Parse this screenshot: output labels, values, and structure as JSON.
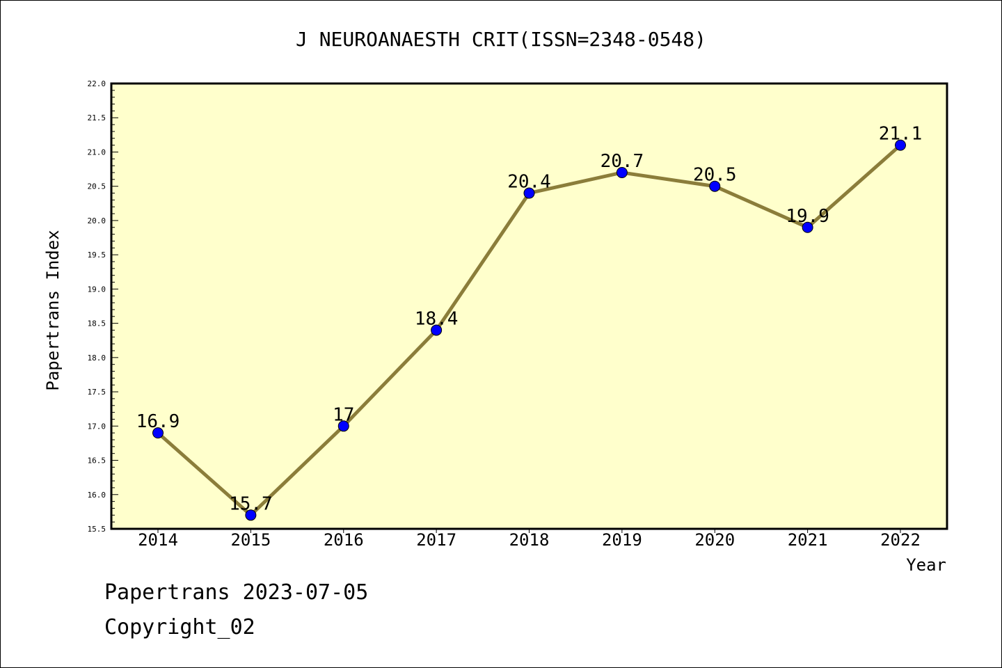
{
  "chart_data": {
    "type": "line",
    "title": "J NEUROANAESTH CRIT(ISSN=2348-0548)",
    "xlabel": "Year",
    "ylabel": "Papertrans Index",
    "categories": [
      "2014",
      "2015",
      "2016",
      "2017",
      "2018",
      "2019",
      "2020",
      "2021",
      "2022"
    ],
    "values": [
      16.9,
      15.7,
      17,
      18.4,
      20.4,
      20.7,
      20.5,
      19.9,
      21.1
    ],
    "data_labels": [
      "16.9",
      "15.7",
      "17",
      "18.4",
      "20.4",
      "20.7",
      "20.5",
      "19.9",
      "21.1"
    ],
    "ylim": [
      15.5,
      22.0
    ],
    "y_major_ticks": [
      "15.5",
      "16.0",
      "16.5",
      "17.0",
      "17.5",
      "18.0",
      "18.5",
      "19.0",
      "19.5",
      "20.0",
      "20.5",
      "21.0",
      "21.5",
      "22.0"
    ],
    "grid": false,
    "colors": {
      "plot_background": "#ffffcc",
      "line": "#8b7d3a",
      "marker": "#0000ff"
    }
  },
  "footer": {
    "source": "Papertrans 2023-07-05",
    "copyright": "Copyright_02"
  }
}
